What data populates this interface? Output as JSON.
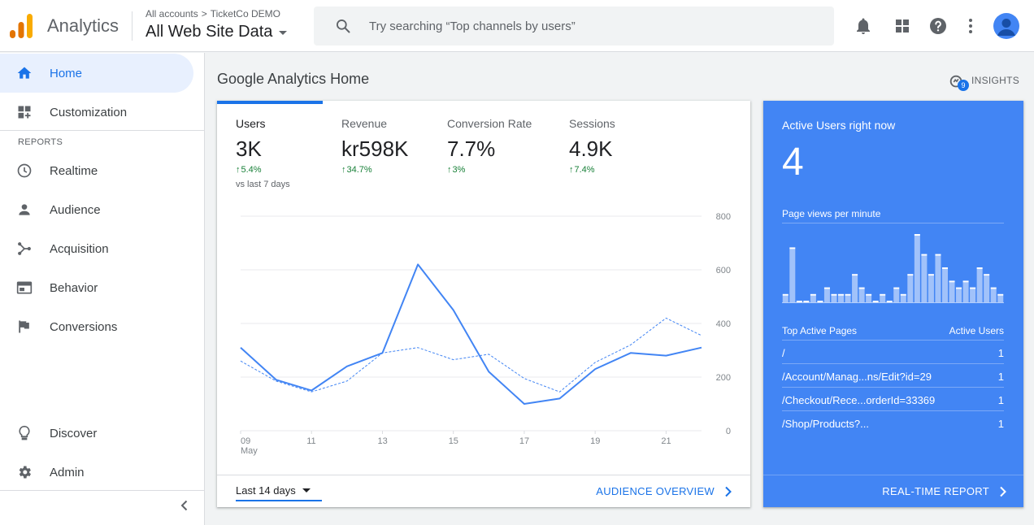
{
  "header": {
    "app_name": "Analytics",
    "breadcrumb": [
      "All accounts",
      "TicketCo DEMO"
    ],
    "breadcrumb_sep": ">",
    "property": "All Web Site Data",
    "search_placeholder": "Try searching “Top channels by users”",
    "icons": [
      "notifications-icon",
      "apps-icon",
      "help-icon",
      "more-vert-icon",
      "account-avatar"
    ]
  },
  "sidebar": {
    "items": [
      {
        "label": "Home",
        "icon": "home-icon",
        "active": true
      },
      {
        "label": "Customization",
        "icon": "dashboard-icon"
      },
      {
        "label": "Realtime",
        "icon": "clock-icon"
      },
      {
        "label": "Audience",
        "icon": "person-icon"
      },
      {
        "label": "Acquisition",
        "icon": "acquisition-icon"
      },
      {
        "label": "Behavior",
        "icon": "behavior-icon"
      },
      {
        "label": "Conversions",
        "icon": "flag-icon"
      },
      {
        "label": "Discover",
        "icon": "lightbulb-icon"
      },
      {
        "label": "Admin",
        "icon": "gear-icon"
      }
    ],
    "section_label": "REPORTS"
  },
  "main": {
    "title": "Google Analytics Home",
    "insights_label": "INSIGHTS",
    "insights_count": "9"
  },
  "overview": {
    "metrics": [
      {
        "label": "Users",
        "value": "3K",
        "change": "5.4%",
        "compare": "vs last 7 days",
        "active": true
      },
      {
        "label": "Revenue",
        "value": "kr598K",
        "change": "34.7%"
      },
      {
        "label": "Conversion Rate",
        "value": "7.7%",
        "change": "3%"
      },
      {
        "label": "Sessions",
        "value": "4.9K",
        "change": "7.4%"
      }
    ],
    "date_range": "Last 14 days",
    "footer_link": "AUDIENCE OVERVIEW"
  },
  "chart_data": {
    "type": "line",
    "x": [
      9,
      10,
      11,
      12,
      13,
      14,
      15,
      16,
      17,
      18,
      19,
      20,
      21,
      22
    ],
    "x_tick_labels": [
      "09",
      "11",
      "13",
      "15",
      "17",
      "19",
      "21"
    ],
    "x_tick_values": [
      9,
      11,
      13,
      15,
      17,
      19,
      21
    ],
    "x_sublabel": "May",
    "y_ticks": [
      0,
      200,
      400,
      600,
      800
    ],
    "ylim": [
      0,
      800
    ],
    "series": [
      {
        "values": [
          310,
          190,
          150,
          240,
          290,
          620,
          450,
          220,
          100,
          120,
          230,
          290,
          280,
          310
        ],
        "style": "solid"
      },
      {
        "values": [
          260,
          185,
          145,
          185,
          290,
          310,
          265,
          285,
          195,
          145,
          255,
          320,
          420,
          355
        ],
        "style": "dashed"
      }
    ],
    "grid": true,
    "color": "#4285f4"
  },
  "realtime": {
    "title": "Active Users right now",
    "count": "4",
    "subtitle": "Page views per minute",
    "bars": [
      1,
      8,
      0,
      0,
      1,
      0,
      2,
      1,
      1,
      1,
      4,
      2,
      1,
      0,
      1,
      0,
      2,
      1,
      4,
      10,
      7,
      4,
      7,
      5,
      3,
      2,
      3,
      2,
      5,
      4,
      2,
      1
    ],
    "bars_max": 10,
    "columns": [
      "Top Active Pages",
      "Active Users"
    ],
    "rows": [
      {
        "page": "/",
        "users": "1"
      },
      {
        "page": "/Account/Manag...ns/Edit?id=29",
        "users": "1"
      },
      {
        "page": "/Checkout/Rece...orderId=33369",
        "users": "1"
      },
      {
        "page": "/Shop/Products?...",
        "users": "1"
      }
    ],
    "footer_link": "REAL-TIME REPORT"
  }
}
